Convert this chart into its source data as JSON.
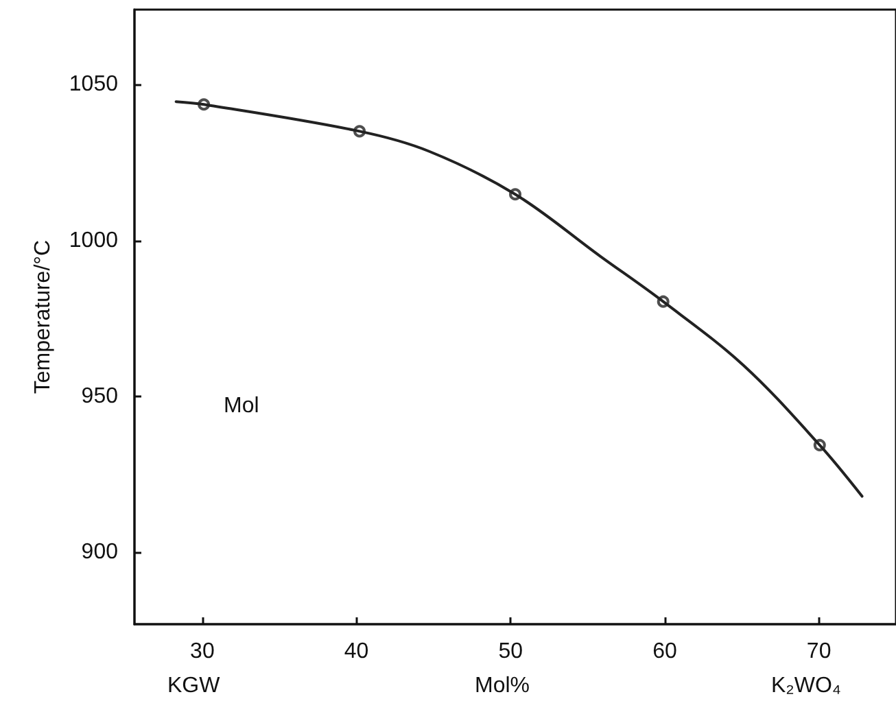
{
  "chart_data": {
    "type": "line",
    "xlabel": "Mol%",
    "ylabel": "Temperature/°C",
    "annotations": [
      "Mol",
      "KGW",
      "K₂WO₄"
    ],
    "xlim": [
      25.6,
      75
    ],
    "ylim": [
      877,
      1074
    ],
    "xticks": [
      30,
      40,
      50,
      60,
      70
    ],
    "yticks": [
      900,
      950,
      1000,
      1050
    ],
    "marker": "circle",
    "series": [
      {
        "marker": "none",
        "color": "#222222",
        "x": [
          28.3,
          30.1,
          40.2,
          44.7,
          50.3,
          55.8,
          59.9,
          65.1,
          70.05,
          72.8
        ],
        "values": [
          1044.5,
          1043.6,
          1035,
          1028.6,
          1014.8,
          995,
          980.4,
          960,
          934.4,
          918
        ]
      },
      {
        "type": "scatter",
        "color": "#222222",
        "x": [
          30.1,
          40.2,
          50.3,
          59.9,
          70.05
        ],
        "values": [
          1043.6,
          1035,
          1014.8,
          980.4,
          934.4
        ]
      }
    ]
  }
}
